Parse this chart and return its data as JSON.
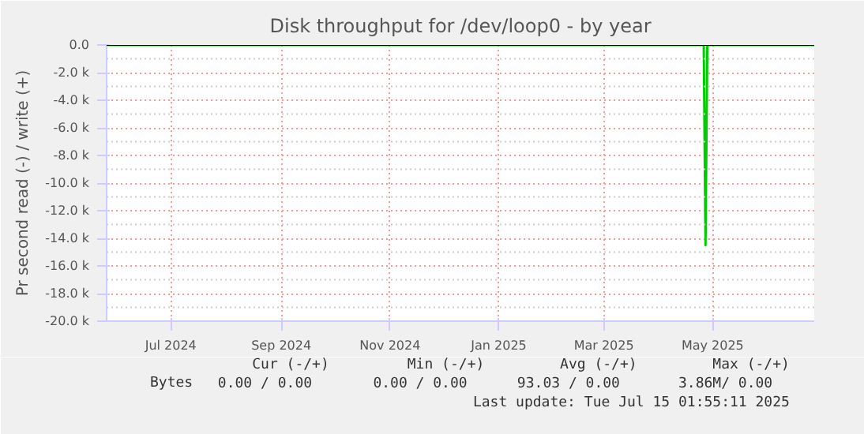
{
  "chart_data": {
    "type": "line",
    "title": "Disk throughput for /dev/loop0 - by year",
    "ylabel": "Pr second read (-) / write (+)",
    "x": [
      "2024-05-26",
      "2025-04-26",
      "2025-04-27",
      "2025-04-28",
      "2025-06-27"
    ],
    "series": [
      {
        "name": "Bytes",
        "color": "#00cc00",
        "values": [
          0,
          0,
          -14500,
          0,
          0
        ]
      }
    ],
    "xlim": [
      "2024-05-26",
      "2025-06-27"
    ],
    "xticks": [
      {
        "value": "2024-07-01",
        "label": "Jul 2024"
      },
      {
        "value": "2024-09-01",
        "label": "Sep 2024"
      },
      {
        "value": "2024-11-01",
        "label": "Nov 2024"
      },
      {
        "value": "2025-01-01",
        "label": "Jan 2025"
      },
      {
        "value": "2025-03-01",
        "label": "Mar 2025"
      },
      {
        "value": "2025-05-01",
        "label": "May 2025"
      }
    ],
    "ylim": [
      -20000,
      0
    ],
    "yticks": [
      {
        "value": 0,
        "label": "0.0"
      },
      {
        "value": -2000,
        "label": "-2.0 k"
      },
      {
        "value": -4000,
        "label": "-4.0 k"
      },
      {
        "value": -6000,
        "label": "-6.0 k"
      },
      {
        "value": -8000,
        "label": "-8.0 k"
      },
      {
        "value": -10000,
        "label": "-10.0 k"
      },
      {
        "value": -12000,
        "label": "-12.0 k"
      },
      {
        "value": -14000,
        "label": "-14.0 k"
      },
      {
        "value": -16000,
        "label": "-16.0 k"
      },
      {
        "value": -18000,
        "label": "-18.0 k"
      },
      {
        "value": -20000,
        "label": "-20.0 k"
      }
    ],
    "ref_lines": [
      {
        "axis": "y",
        "value": 0,
        "color": "#000000"
      }
    ],
    "grid": true,
    "legend": "bottom left",
    "annotations": [
      "Cur (-/+)",
      "Min (-/+)",
      "Avg (-/+)",
      "Max (-/+)",
      "0.00 /   0.00",
      "0.00 /   0.00",
      "93.03 /   0.00",
      "3.86M/   0.00",
      "Last update: Tue Jul 15 01:55:11 2025"
    ]
  }
}
